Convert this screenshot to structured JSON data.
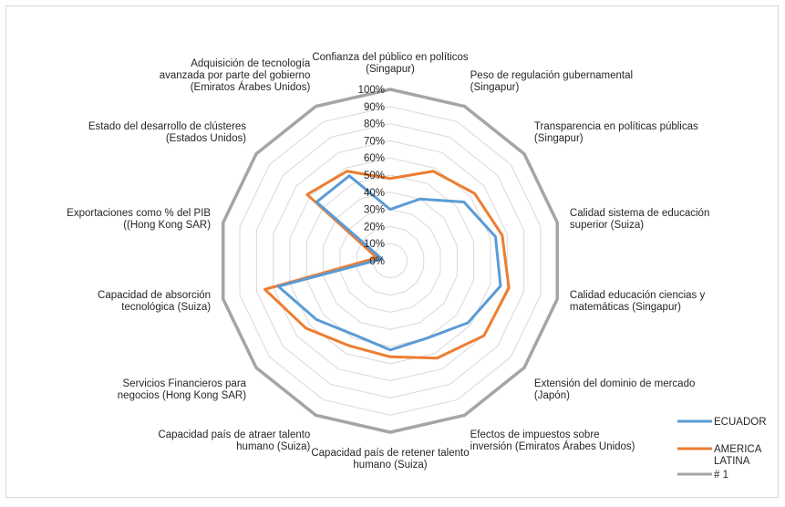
{
  "chart_data": {
    "type": "radar",
    "title": "",
    "categories": [
      [
        "Confianza del público en políticos",
        "(Singapur)"
      ],
      [
        "Peso de regulación gubernamental",
        "(Singapur)"
      ],
      [
        "Transparencia en políticas públicas",
        "(Singapur)"
      ],
      [
        "Calidad sistema de educación",
        "superior (Suiza)"
      ],
      [
        "Calidad educación ciencias y",
        "matemáticas (Singapur)"
      ],
      [
        "Extensión del dominio de mercado",
        "(Japón)"
      ],
      [
        "Efectos de impuestos sobre",
        "inversión (Emiratos Árabes Unidos)"
      ],
      [
        "Capacidad país de retener talento",
        "humano (Suiza)"
      ],
      [
        "Capacidad país de atraer talento",
        "humano (Suiza)"
      ],
      [
        "Servicios Financieros para",
        "negocios (Hong Kong SAR)"
      ],
      [
        "Capacidad de absorción",
        "tecnológica (Suiza)"
      ],
      [
        "Exportaciones como % del PIB",
        "((Hong Kong SAR)"
      ],
      [
        "Estado del desarrollo de clústeres",
        "(Estados Unidos)"
      ],
      [
        "Adquisición de tecnología",
        "avanzada por parte del gobierno",
        "(Emiratos Árabes Unidos)"
      ]
    ],
    "ticks": [
      "0%",
      "10%",
      "20%",
      "30%",
      "40%",
      "50%",
      "60%",
      "70%",
      "80%",
      "90%",
      "100%"
    ],
    "rmax": 100,
    "series": [
      {
        "name": "ECUADOR",
        "color": "#5b9bd5",
        "values": [
          30,
          40,
          55,
          63,
          66,
          58,
          50,
          52,
          48,
          55,
          67,
          5,
          55,
          55
        ]
      },
      {
        "name": "AMERICA LATINA",
        "color": "#ed7d31",
        "values": [
          48,
          58,
          63,
          67,
          71,
          70,
          63,
          56,
          55,
          63,
          75,
          8,
          62,
          58
        ]
      },
      {
        "name": "# 1",
        "color": "#a5a5a5",
        "values": [
          100,
          100,
          100,
          100,
          100,
          100,
          100,
          100,
          100,
          100,
          100,
          100,
          100,
          100
        ]
      }
    ],
    "grid": true,
    "legend_position": "right"
  }
}
